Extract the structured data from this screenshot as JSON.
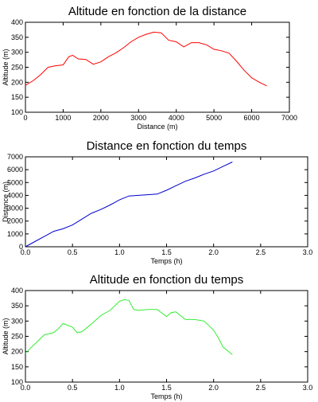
{
  "chart_data": [
    {
      "type": "line",
      "title": "Altitude en fonction de la distance",
      "xlabel": "Distance (m)",
      "ylabel": "Altitude (m)",
      "xlim": [
        0,
        7000
      ],
      "ylim": [
        100,
        400
      ],
      "xticks": [
        "0",
        "1000",
        "2000",
        "3000",
        "4000",
        "5000",
        "6000",
        "7000"
      ],
      "yticks": [
        "100",
        "150",
        "200",
        "250",
        "300",
        "350",
        "400"
      ],
      "color": "#ff0000",
      "series": [
        {
          "x": [
            0,
            200,
            400,
            600,
            800,
            1000,
            1150,
            1250,
            1400,
            1600,
            1800,
            2000,
            2200,
            2400,
            2600,
            2800,
            3000,
            3200,
            3400,
            3600,
            3800,
            4000,
            4200,
            4400,
            4600,
            4800,
            5000,
            5200,
            5400,
            5600,
            5800,
            6000,
            6200,
            6400
          ],
          "y": [
            190,
            205,
            225,
            250,
            255,
            258,
            285,
            290,
            278,
            276,
            260,
            268,
            285,
            298,
            315,
            335,
            350,
            360,
            367,
            365,
            340,
            335,
            318,
            332,
            332,
            325,
            310,
            305,
            297,
            270,
            240,
            215,
            200,
            188
          ]
        }
      ]
    },
    {
      "type": "line",
      "title": "Distance en fonction du temps",
      "xlabel": "Temps (h)",
      "ylabel": "Distance (m)",
      "xlim": [
        0,
        3
      ],
      "ylim": [
        0,
        7000
      ],
      "xticks": [
        "0.0",
        "0.5",
        "1.0",
        "1.5",
        "2.0",
        "2.5",
        "3.0"
      ],
      "yticks": [
        "0",
        "1000",
        "2000",
        "3000",
        "4000",
        "5000",
        "6000",
        "7000"
      ],
      "color": "#0000cc",
      "series": [
        {
          "x": [
            0,
            0.1,
            0.2,
            0.3,
            0.4,
            0.5,
            0.6,
            0.7,
            0.8,
            0.9,
            1.0,
            1.1,
            1.2,
            1.3,
            1.4,
            1.5,
            1.6,
            1.7,
            1.8,
            1.9,
            2.0,
            2.1,
            2.2
          ],
          "y": [
            0,
            400,
            800,
            1200,
            1400,
            1700,
            2150,
            2600,
            2900,
            3250,
            3650,
            3950,
            4000,
            4050,
            4100,
            4400,
            4750,
            5100,
            5350,
            5650,
            5900,
            6250,
            6600
          ]
        }
      ]
    },
    {
      "type": "line",
      "title": "Altitude en fonction du temps",
      "xlabel": "Temps (h)",
      "ylabel": "Altitude (m)",
      "xlim": [
        0,
        3
      ],
      "ylim": [
        100,
        400
      ],
      "xticks": [
        "0.0",
        "0.5",
        "1.0",
        "1.5",
        "2.0",
        "2.5",
        "3.0"
      ],
      "yticks": [
        "100",
        "150",
        "200",
        "250",
        "300",
        "350",
        "400"
      ],
      "color": "#33ee33",
      "series": [
        {
          "x": [
            0,
            0.05,
            0.1,
            0.2,
            0.3,
            0.35,
            0.4,
            0.5,
            0.55,
            0.6,
            0.7,
            0.8,
            0.9,
            1.0,
            1.05,
            1.1,
            1.15,
            1.2,
            1.3,
            1.4,
            1.5,
            1.55,
            1.6,
            1.7,
            1.8,
            1.9,
            2.0,
            2.05,
            2.1,
            2.2
          ],
          "y": [
            195,
            210,
            225,
            255,
            262,
            275,
            292,
            280,
            262,
            265,
            290,
            318,
            335,
            365,
            370,
            368,
            338,
            335,
            338,
            338,
            315,
            328,
            330,
            305,
            305,
            300,
            270,
            245,
            215,
            190
          ]
        }
      ]
    }
  ]
}
